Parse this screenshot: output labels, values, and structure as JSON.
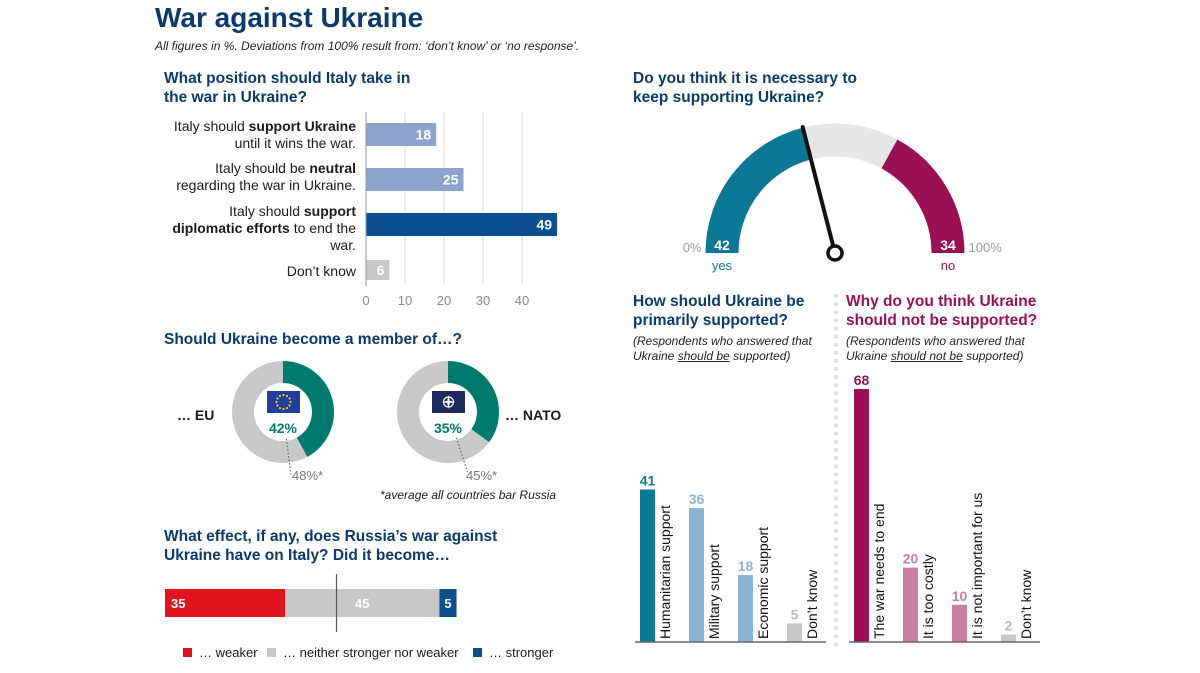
{
  "header": {
    "title": "War against Ukraine",
    "subtitle": "All figures in %. Deviations from 100% result from: ‘don’t know’ or ‘no response’."
  },
  "colors": {
    "light_blue": "#8da3cc",
    "dark_blue": "#0b4f8f",
    "grey": "#c8c8c8",
    "teal": "#007a6c",
    "red": "#e1141e",
    "magenta": "#9b1053",
    "pink": "#c97fa0",
    "petrol": "#0b7896",
    "sky": "#8cb3d1"
  },
  "position": {
    "question": [
      "What position should Italy take in",
      "the war in Ukraine?"
    ],
    "labels": [
      {
        "pre": "Italy should ",
        "bold": "support Ukraine",
        "post": " until it wins the war."
      },
      {
        "pre": "Italy should be ",
        "bold": "neutral",
        "post": " regarding the war in Ukraine."
      },
      {
        "pre": "Italy should ",
        "bold": "support diplomatic efforts",
        "post": " to end the war."
      },
      {
        "pre": "Don’t know",
        "bold": "",
        "post": ""
      }
    ]
  },
  "membership": {
    "question": "Should Ukraine become a member of…?",
    "eu_label": "… EU",
    "eu_value": "42%",
    "eu_avg": "48%*",
    "nato_label": "… NATO",
    "nato_value": "35%",
    "nato_avg": "45%*",
    "footnote": "*average all countries bar Russia"
  },
  "effect": {
    "question": [
      "What effect, if any, does Russia’s war against",
      "Ukraine have on Italy? Did it become…"
    ],
    "legend": [
      "… weaker",
      "… neither stronger nor weaker",
      "… stronger"
    ]
  },
  "support": {
    "question": [
      "Do you think it is necessary to",
      "keep supporting Ukraine?"
    ],
    "min_label": "0%",
    "max_label": "100%",
    "yes_value": "42",
    "no_value": "34",
    "yes_label": "yes",
    "no_label": "no"
  },
  "how": {
    "question": [
      "How should Ukraine be",
      "primarily supported?"
    ],
    "note_pre": "(Respondents who answered that",
    "note_line2_pre": "Ukraine ",
    "note_u": "should be",
    "note_post": " supported)"
  },
  "why": {
    "question": [
      "Why do you think Ukraine",
      "should not be supported?"
    ],
    "note_pre": "(Respondents who answered that",
    "note_line2_pre": "Ukraine ",
    "note_u": "should not be",
    "note_post": " supported)"
  },
  "chart_data": [
    {
      "type": "bar",
      "orientation": "horizontal",
      "categories": [
        "Italy should support Ukraine until it wins the war.",
        "Italy should be neutral regarding the war in Ukraine.",
        "Italy should support diplomatic efforts to end the war.",
        "Don’t know"
      ],
      "values": [
        18,
        25,
        49,
        6
      ],
      "xticks": [
        "0",
        "10",
        "20",
        "30",
        "40"
      ],
      "xlim": [
        0,
        50
      ]
    },
    {
      "type": "pie",
      "title": "… EU",
      "values": [
        42
      ],
      "labels": [
        "42%"
      ],
      "average": 48,
      "average_label": "48%*"
    },
    {
      "type": "pie",
      "title": "… NATO",
      "values": [
        35
      ],
      "labels": [
        "35%"
      ],
      "average": 45,
      "average_label": "45%*"
    },
    {
      "type": "bar",
      "orientation": "stacked-horizontal",
      "categories": [
        "… weaker",
        "… neither stronger nor weaker",
        "… stronger"
      ],
      "values": [
        35,
        45,
        5
      ],
      "labels": [
        "35",
        "45",
        "5"
      ]
    },
    {
      "type": "pie",
      "subtype": "gauge",
      "categories": [
        "yes",
        "no"
      ],
      "values": [
        42,
        34
      ],
      "labels": [
        "42",
        "34"
      ]
    },
    {
      "type": "bar",
      "categories": [
        "Humanitarian support",
        "Military support",
        "Economic support",
        "Don’t know"
      ],
      "values": [
        41,
        36,
        18,
        5
      ],
      "labels": [
        "41",
        "36",
        "18",
        "5"
      ]
    },
    {
      "type": "bar",
      "categories": [
        "The war needs to end",
        "It is too costly",
        "It is not important for us",
        "Don’t know"
      ],
      "values": [
        68,
        20,
        10,
        2
      ],
      "labels": [
        "68",
        "20",
        "10",
        "2"
      ]
    }
  ]
}
